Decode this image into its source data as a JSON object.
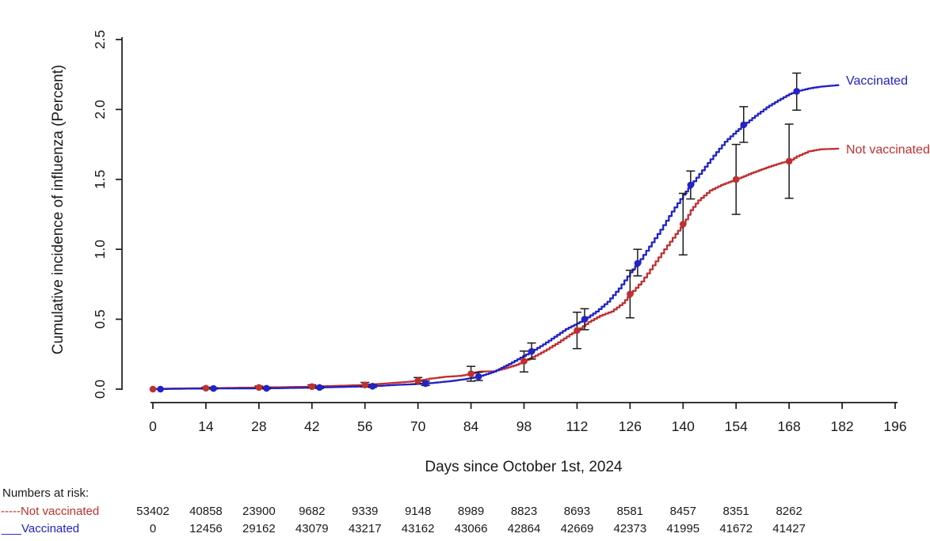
{
  "chart_data": {
    "type": "line",
    "title": "",
    "xlabel": "Days since October 1st, 2024",
    "ylabel": "Cumulative incidence of influenza (Percent)",
    "xlim": [
      0,
      196
    ],
    "ylim": [
      0,
      2.5
    ],
    "xticks": [
      0,
      14,
      28,
      42,
      56,
      70,
      84,
      98,
      112,
      126,
      140,
      154,
      168,
      182,
      196
    ],
    "yticks": [
      "0.0",
      "0.5",
      "1.0",
      "1.5",
      "2.0",
      "2.5"
    ],
    "grid": false,
    "legend_position": "right of curve ends",
    "axis_color": "#1a1a1a",
    "series": [
      {
        "name": "Vaccinated",
        "color": "#2222C6",
        "curve": [
          [
            0,
            0
          ],
          [
            8,
            0.003
          ],
          [
            16,
            0.005
          ],
          [
            24,
            0.005
          ],
          [
            30,
            0.006
          ],
          [
            38,
            0.009
          ],
          [
            44,
            0.012
          ],
          [
            50,
            0.016
          ],
          [
            58,
            0.021
          ],
          [
            64,
            0.03
          ],
          [
            72,
            0.04
          ],
          [
            78,
            0.056
          ],
          [
            82,
            0.07
          ],
          [
            86,
            0.09
          ],
          [
            90,
            0.125
          ],
          [
            94,
            0.18
          ],
          [
            97,
            0.225
          ],
          [
            100,
            0.27
          ],
          [
            103,
            0.32
          ],
          [
            106,
            0.375
          ],
          [
            109,
            0.43
          ],
          [
            112,
            0.47
          ],
          [
            114,
            0.5
          ],
          [
            117,
            0.555
          ],
          [
            120,
            0.625
          ],
          [
            123,
            0.72
          ],
          [
            126,
            0.835
          ],
          [
            128,
            0.9
          ],
          [
            131,
            1.02
          ],
          [
            134,
            1.14
          ],
          [
            137,
            1.27
          ],
          [
            140,
            1.39
          ],
          [
            142,
            1.46
          ],
          [
            145,
            1.565
          ],
          [
            148,
            1.67
          ],
          [
            151,
            1.77
          ],
          [
            154,
            1.845
          ],
          [
            156,
            1.89
          ],
          [
            159,
            1.955
          ],
          [
            162,
            2.015
          ],
          [
            165,
            2.065
          ],
          [
            168,
            2.11
          ],
          [
            170,
            2.13
          ],
          [
            173,
            2.15
          ],
          [
            176,
            2.163
          ],
          [
            181,
            2.175
          ]
        ],
        "markers": [
          {
            "day": 2,
            "est": 0.0,
            "lo": 0.0,
            "hi": 0.0
          },
          {
            "day": 16,
            "est": 0.005,
            "lo": 0.001,
            "hi": 0.01
          },
          {
            "day": 30,
            "est": 0.006,
            "lo": 0.001,
            "hi": 0.012
          },
          {
            "day": 44,
            "est": 0.012,
            "lo": 0.005,
            "hi": 0.021
          },
          {
            "day": 58,
            "est": 0.021,
            "lo": 0.012,
            "hi": 0.033
          },
          {
            "day": 72,
            "est": 0.04,
            "lo": 0.026,
            "hi": 0.057
          },
          {
            "day": 86,
            "est": 0.09,
            "lo": 0.062,
            "hi": 0.121
          },
          {
            "day": 100,
            "est": 0.27,
            "lo": 0.215,
            "hi": 0.33
          },
          {
            "day": 114,
            "est": 0.5,
            "lo": 0.425,
            "hi": 0.575
          },
          {
            "day": 128,
            "est": 0.9,
            "lo": 0.81,
            "hi": 1.0
          },
          {
            "day": 142,
            "est": 1.46,
            "lo": 1.36,
            "hi": 1.56
          },
          {
            "day": 156,
            "est": 1.89,
            "lo": 1.765,
            "hi": 2.02
          },
          {
            "day": 170,
            "est": 2.13,
            "lo": 1.995,
            "hi": 2.26
          }
        ]
      },
      {
        "name": "Not vaccinated",
        "color": "#C03030",
        "curve": [
          [
            0,
            0
          ],
          [
            4,
            0.004
          ],
          [
            10,
            0.006
          ],
          [
            14,
            0.007
          ],
          [
            20,
            0.009
          ],
          [
            28,
            0.012
          ],
          [
            34,
            0.014
          ],
          [
            42,
            0.018
          ],
          [
            48,
            0.023
          ],
          [
            56,
            0.03
          ],
          [
            61,
            0.04
          ],
          [
            66,
            0.05
          ],
          [
            70,
            0.06
          ],
          [
            73,
            0.075
          ],
          [
            77,
            0.088
          ],
          [
            81,
            0.095
          ],
          [
            84,
            0.11
          ],
          [
            86,
            0.125
          ],
          [
            90,
            0.128
          ],
          [
            93,
            0.15
          ],
          [
            96,
            0.175
          ],
          [
            98,
            0.2
          ],
          [
            101,
            0.24
          ],
          [
            104,
            0.285
          ],
          [
            107,
            0.335
          ],
          [
            110,
            0.39
          ],
          [
            112,
            0.42
          ],
          [
            115,
            0.48
          ],
          [
            118,
            0.525
          ],
          [
            121,
            0.555
          ],
          [
            124,
            0.615
          ],
          [
            126,
            0.68
          ],
          [
            129,
            0.77
          ],
          [
            132,
            0.885
          ],
          [
            135,
            1.0
          ],
          [
            138,
            1.11
          ],
          [
            140,
            1.18
          ],
          [
            142,
            1.28
          ],
          [
            144,
            1.35
          ],
          [
            147,
            1.42
          ],
          [
            150,
            1.46
          ],
          [
            154,
            1.5
          ],
          [
            158,
            1.545
          ],
          [
            162,
            1.585
          ],
          [
            166,
            1.62
          ],
          [
            168,
            1.63
          ],
          [
            170,
            1.665
          ],
          [
            173,
            1.7
          ],
          [
            176,
            1.715
          ],
          [
            181,
            1.72
          ]
        ],
        "markers": [
          {
            "day": 0,
            "est": 0.0,
            "lo": 0.0,
            "hi": 0.0
          },
          {
            "day": 14,
            "est": 0.007,
            "lo": 0.001,
            "hi": 0.014
          },
          {
            "day": 28,
            "est": 0.012,
            "lo": 0.004,
            "hi": 0.022
          },
          {
            "day": 42,
            "est": 0.018,
            "lo": 0.007,
            "hi": 0.031
          },
          {
            "day": 56,
            "est": 0.03,
            "lo": 0.015,
            "hi": 0.048
          },
          {
            "day": 70,
            "est": 0.06,
            "lo": 0.038,
            "hi": 0.083
          },
          {
            "day": 84,
            "est": 0.11,
            "lo": 0.057,
            "hi": 0.163
          },
          {
            "day": 98,
            "est": 0.2,
            "lo": 0.123,
            "hi": 0.272
          },
          {
            "day": 112,
            "est": 0.42,
            "lo": 0.29,
            "hi": 0.55
          },
          {
            "day": 126,
            "est": 0.68,
            "lo": 0.51,
            "hi": 0.85
          },
          {
            "day": 140,
            "est": 1.18,
            "lo": 0.96,
            "hi": 1.4
          },
          {
            "day": 154,
            "est": 1.5,
            "lo": 1.25,
            "hi": 1.75
          },
          {
            "day": 168,
            "est": 1.63,
            "lo": 1.365,
            "hi": 1.895
          }
        ]
      }
    ]
  },
  "risk_table": {
    "heading": "Numbers at risk:",
    "times": [
      0,
      14,
      28,
      42,
      56,
      70,
      84,
      98,
      112,
      126,
      140,
      154,
      168
    ],
    "rows": [
      {
        "label": "-----Not vaccinated",
        "color": "#C03030",
        "values": [
          53402,
          40858,
          23900,
          9682,
          9339,
          9148,
          8989,
          8823,
          8693,
          8581,
          8457,
          8351,
          8262
        ]
      },
      {
        "label": "___Vaccinated",
        "color": "#2222C6",
        "values": [
          0,
          12456,
          29162,
          43079,
          43217,
          43162,
          43066,
          42864,
          42669,
          42373,
          41995,
          41672,
          41427
        ]
      }
    ]
  }
}
